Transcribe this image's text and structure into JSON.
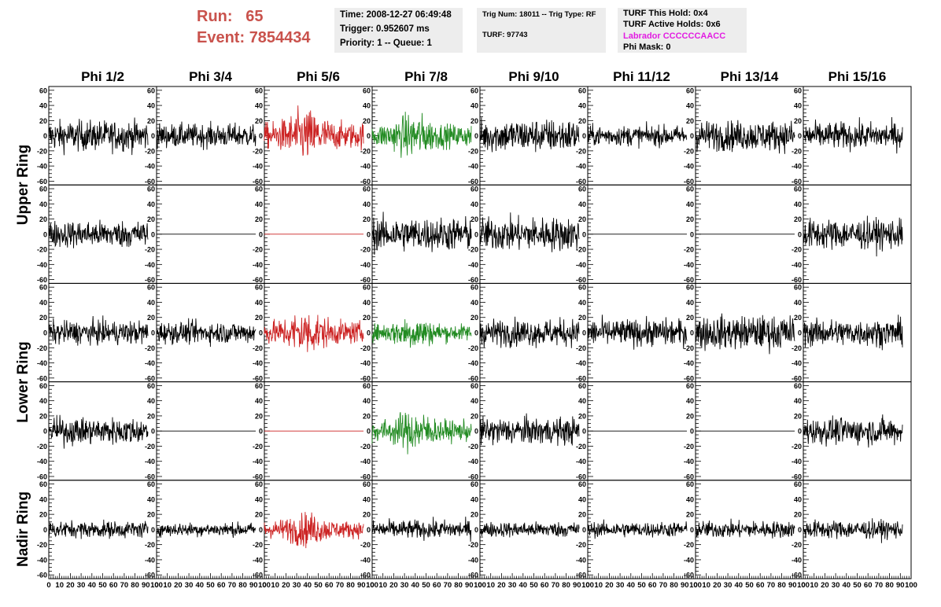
{
  "header": {
    "run_label": "Run:",
    "run_value": "65",
    "event_label": "Event:",
    "event_value": "7854434"
  },
  "info_time": {
    "time": "Time: 2008-12-27 06:49:48",
    "trigger": "Trigger: 0.952607 ms",
    "priority": "Priority: 1 -- Queue: 1"
  },
  "info_trig": {
    "trig": "Trig Num: 18011 -- Trig Type: RF",
    "turf": "TURF: 97743"
  },
  "info_turf": {
    "this_hold": "TURF This Hold: 0x4",
    "active_holds": "TURF Active Holds: 0x6",
    "labrador": "Labrador CCCCCCAACC",
    "phi_mask": "Phi Mask: 0"
  },
  "colors": {
    "run_text": "#c9524c",
    "labrador_text": "#e21de2",
    "trace_default": "#000000",
    "trace_red": "#cc2222",
    "trace_green": "#228b22",
    "info_bg": "#ededed"
  },
  "chart_data": {
    "type": "line",
    "columns": [
      "Phi 1/2",
      "Phi 3/4",
      "Phi 5/6",
      "Phi 7/8",
      "Phi 9/10",
      "Phi 11/12",
      "Phi 13/14",
      "Phi 15/16"
    ],
    "rows": [
      "Upper Ring",
      "Lower Ring",
      "Nadir Ring"
    ],
    "panel_grid": {
      "rows": 5,
      "cols": 8,
      "row_groups": [
        {
          "name": "Upper Ring",
          "panels": [
            0,
            1
          ]
        },
        {
          "name": "Lower Ring",
          "panels": [
            2,
            3
          ]
        },
        {
          "name": "Nadir Ring",
          "panels": [
            4
          ]
        }
      ]
    },
    "xlim": [
      0,
      100
    ],
    "ylim": [
      -65,
      65
    ],
    "x_ticks": [
      0,
      10,
      20,
      30,
      40,
      50,
      60,
      70,
      80,
      90,
      100
    ],
    "x_tick_labels": [
      "0",
      "10",
      "20",
      "30",
      "40",
      "50",
      "60",
      "70",
      "80",
      "90",
      "100"
    ],
    "y_ticks": [
      -60,
      -40,
      -20,
      0,
      20,
      40,
      60
    ],
    "y_tick_labels": [
      "-60",
      "-40",
      "-20",
      "0",
      "20",
      "40",
      "60"
    ],
    "trace_colors": [
      [
        "black",
        "black",
        "red",
        "green",
        "black",
        "black",
        "black",
        "black"
      ],
      [
        "black",
        "black",
        "red",
        "black",
        "black",
        "black",
        "black",
        "black"
      ],
      [
        "black",
        "black",
        "red",
        "green",
        "black",
        "black",
        "black",
        "black"
      ],
      [
        "black",
        "black",
        "red",
        "green",
        "black",
        "black",
        "black",
        "black"
      ],
      [
        "black",
        "black",
        "red",
        "black",
        "black",
        "black",
        "black",
        "black"
      ]
    ],
    "flat_panels": [
      [
        1,
        1
      ],
      [
        1,
        2
      ],
      [
        1,
        5
      ],
      [
        1,
        6
      ],
      [
        3,
        1
      ],
      [
        3,
        2
      ],
      [
        3,
        5
      ],
      [
        3,
        6
      ]
    ],
    "amplitude": [
      [
        18,
        14,
        28,
        24,
        20,
        12,
        18,
        16
      ],
      [
        16,
        0,
        0,
        20,
        20,
        0,
        0,
        18
      ],
      [
        14,
        13,
        24,
        18,
        16,
        16,
        20,
        16
      ],
      [
        16,
        0,
        0,
        22,
        16,
        0,
        0,
        16
      ],
      [
        10,
        8,
        18,
        11,
        9,
        9,
        10,
        11
      ]
    ],
    "trace_extent": [
      0,
      92
    ]
  }
}
